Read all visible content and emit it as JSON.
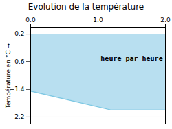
{
  "chart_data": {
    "type": "area",
    "title": "Evolution de la température",
    "y_label": "Température en °C",
    "x": [
      0,
      1.2,
      2.0
    ],
    "series": [
      {
        "type": "area",
        "color": "#b8dff0",
        "values_top": [
          0.2,
          0.2,
          0.2
        ],
        "values": [
          -1.45,
          -2.0,
          -2.0
        ]
      },
      {
        "type": "line",
        "color": "#7ec8e3",
        "values": [
          -1.45,
          -2.0,
          -2.0
        ]
      }
    ],
    "annotations": [
      {
        "text": "heure par heure",
        "x": 1.5,
        "y": -0.52
      }
    ],
    "xlim": [
      0,
      2.0
    ],
    "ylim": [
      -2.4,
      0.38
    ],
    "xticks": [
      0,
      1,
      2
    ],
    "yticks": [
      0.2,
      -0.6,
      -1.4,
      -2.2
    ],
    "grid": true
  }
}
